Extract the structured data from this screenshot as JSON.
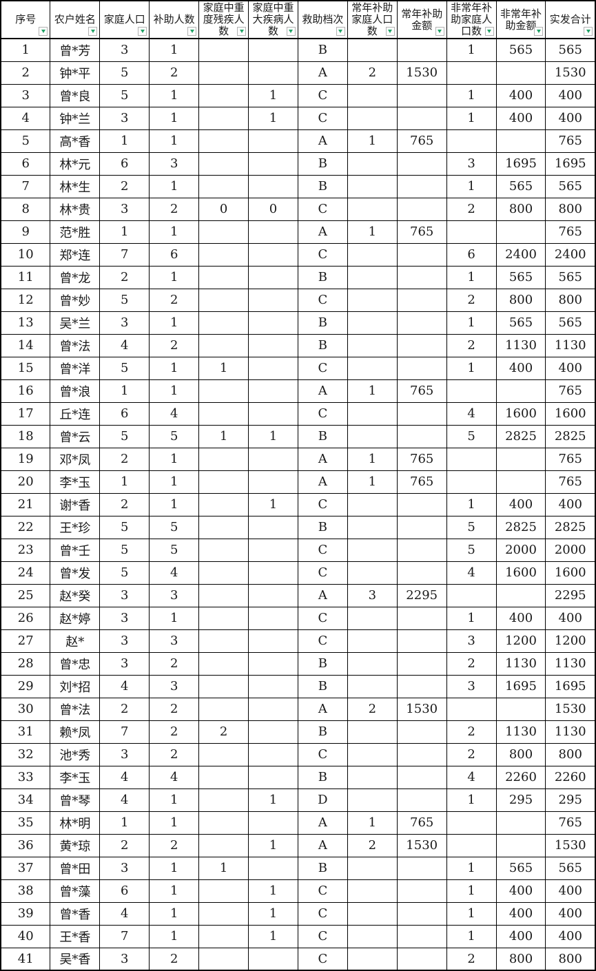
{
  "table": {
    "columns": [
      "序号",
      "农户姓名",
      "家庭人口",
      "补助人数",
      "家庭中重度残疾人数",
      "家庭中重大疾病人数",
      "救助档次",
      "常年补助家庭人口数",
      "常年补助金额",
      "非常年补助家庭人口数",
      "非常年补助金额",
      "实发合计"
    ],
    "rows": [
      [
        "1",
        "曾*芳",
        "3",
        "1",
        "",
        "",
        "B",
        "",
        "",
        "1",
        "565",
        "565"
      ],
      [
        "2",
        "钟*平",
        "5",
        "2",
        "",
        "",
        "A",
        "2",
        "1530",
        "",
        "",
        "1530"
      ],
      [
        "3",
        "曾*良",
        "5",
        "1",
        "",
        "1",
        "C",
        "",
        "",
        "1",
        "400",
        "400"
      ],
      [
        "4",
        "钟*兰",
        "3",
        "1",
        "",
        "1",
        "C",
        "",
        "",
        "1",
        "400",
        "400"
      ],
      [
        "5",
        "高*香",
        "1",
        "1",
        "",
        "",
        "A",
        "1",
        "765",
        "",
        "",
        "765"
      ],
      [
        "6",
        "林*元",
        "6",
        "3",
        "",
        "",
        "B",
        "",
        "",
        "3",
        "1695",
        "1695"
      ],
      [
        "7",
        "林*生",
        "2",
        "1",
        "",
        "",
        "B",
        "",
        "",
        "1",
        "565",
        "565"
      ],
      [
        "8",
        "林*贵",
        "3",
        "2",
        "0",
        "0",
        "C",
        "",
        "",
        "2",
        "800",
        "800"
      ],
      [
        "9",
        "范*胜",
        "1",
        "1",
        "",
        "",
        "A",
        "1",
        "765",
        "",
        "",
        "765"
      ],
      [
        "10",
        "郑*连",
        "7",
        "6",
        "",
        "",
        "C",
        "",
        "",
        "6",
        "2400",
        "2400"
      ],
      [
        "11",
        "曾*龙",
        "2",
        "1",
        "",
        "",
        "B",
        "",
        "",
        "1",
        "565",
        "565"
      ],
      [
        "12",
        "曾*妙",
        "5",
        "2",
        "",
        "",
        "C",
        "",
        "",
        "2",
        "800",
        "800"
      ],
      [
        "13",
        "吴*兰",
        "3",
        "1",
        "",
        "",
        "B",
        "",
        "",
        "1",
        "565",
        "565"
      ],
      [
        "14",
        "曾*法",
        "4",
        "2",
        "",
        "",
        "B",
        "",
        "",
        "2",
        "1130",
        "1130"
      ],
      [
        "15",
        "曾*洋",
        "5",
        "1",
        "1",
        "",
        "C",
        "",
        "",
        "1",
        "400",
        "400"
      ],
      [
        "16",
        "曾*浪",
        "1",
        "1",
        "",
        "",
        "A",
        "1",
        "765",
        "",
        "",
        "765"
      ],
      [
        "17",
        "丘*连",
        "6",
        "4",
        "",
        "",
        "C",
        "",
        "",
        "4",
        "1600",
        "1600"
      ],
      [
        "18",
        "曾*云",
        "5",
        "5",
        "1",
        "1",
        "B",
        "",
        "",
        "5",
        "2825",
        "2825"
      ],
      [
        "19",
        "邓*凤",
        "2",
        "1",
        "",
        "",
        "A",
        "1",
        "765",
        "",
        "",
        "765"
      ],
      [
        "20",
        "李*玉",
        "1",
        "1",
        "",
        "",
        "A",
        "1",
        "765",
        "",
        "",
        "765"
      ],
      [
        "21",
        "谢*香",
        "2",
        "1",
        "",
        "1",
        "C",
        "",
        "",
        "1",
        "400",
        "400"
      ],
      [
        "22",
        "王*珍",
        "5",
        "5",
        "",
        "",
        "B",
        "",
        "",
        "5",
        "2825",
        "2825"
      ],
      [
        "23",
        "曾*壬",
        "5",
        "5",
        "",
        "",
        "C",
        "",
        "",
        "5",
        "2000",
        "2000"
      ],
      [
        "24",
        "曾*发",
        "5",
        "4",
        "",
        "",
        "C",
        "",
        "",
        "4",
        "1600",
        "1600"
      ],
      [
        "25",
        "赵*癸",
        "3",
        "3",
        "",
        "",
        "A",
        "3",
        "2295",
        "",
        "",
        "2295"
      ],
      [
        "26",
        "赵*婷",
        "3",
        "1",
        "",
        "",
        "C",
        "",
        "",
        "1",
        "400",
        "400"
      ],
      [
        "27",
        "赵*",
        "3",
        "3",
        "",
        "",
        "C",
        "",
        "",
        "3",
        "1200",
        "1200"
      ],
      [
        "28",
        "曾*忠",
        "3",
        "2",
        "",
        "",
        "B",
        "",
        "",
        "2",
        "1130",
        "1130"
      ],
      [
        "29",
        "刘*招",
        "4",
        "3",
        "",
        "",
        "B",
        "",
        "",
        "3",
        "1695",
        "1695"
      ],
      [
        "30",
        "曾*法",
        "2",
        "2",
        "",
        "",
        "A",
        "2",
        "1530",
        "",
        "",
        "1530"
      ],
      [
        "31",
        "赖*凤",
        "7",
        "2",
        "2",
        "",
        "B",
        "",
        "",
        "2",
        "1130",
        "1130"
      ],
      [
        "32",
        "池*秀",
        "3",
        "2",
        "",
        "",
        "C",
        "",
        "",
        "2",
        "800",
        "800"
      ],
      [
        "33",
        "李*玉",
        "4",
        "4",
        "",
        "",
        "B",
        "",
        "",
        "4",
        "2260",
        "2260"
      ],
      [
        "34",
        "曾*琴",
        "4",
        "1",
        "",
        "1",
        "D",
        "",
        "",
        "1",
        "295",
        "295"
      ],
      [
        "35",
        "林*明",
        "1",
        "1",
        "",
        "",
        "A",
        "1",
        "765",
        "",
        "",
        "765"
      ],
      [
        "36",
        "黄*琼",
        "2",
        "2",
        "",
        "1",
        "A",
        "2",
        "1530",
        "",
        "",
        "1530"
      ],
      [
        "37",
        "曾*田",
        "3",
        "1",
        "1",
        "",
        "B",
        "",
        "",
        "1",
        "565",
        "565"
      ],
      [
        "38",
        "曾*藻",
        "6",
        "1",
        "",
        "1",
        "C",
        "",
        "",
        "1",
        "400",
        "400"
      ],
      [
        "39",
        "曾*香",
        "4",
        "1",
        "",
        "1",
        "C",
        "",
        "",
        "1",
        "400",
        "400"
      ],
      [
        "40",
        "王*香",
        "7",
        "1",
        "",
        "1",
        "C",
        "",
        "",
        "1",
        "400",
        "400"
      ],
      [
        "41",
        "吴*香",
        "3",
        "2",
        "",
        "",
        "C",
        "",
        "",
        "2",
        "800",
        "800"
      ]
    ]
  },
  "icons": {
    "filter": "filter-dropdown-triangle"
  },
  "colors": {
    "filter_triangle": "#21a366",
    "filter_button_border": "#b3b3b3",
    "grid_border": "#000000",
    "background": "#ffffff"
  }
}
